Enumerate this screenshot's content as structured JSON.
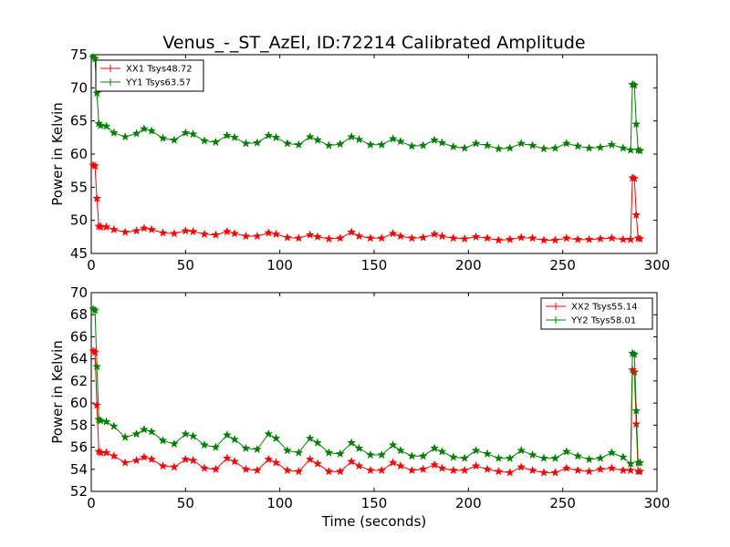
{
  "figure": {
    "title": "Venus_-_ST_AzEl, ID:72214 Calibrated Amplitude",
    "xlabel": "Time (seconds)",
    "ylabel": "Power in Kelvin"
  },
  "colors": {
    "red": "#ff0000",
    "green": "#008000"
  },
  "chart_data": [
    {
      "type": "line",
      "title": "Venus_-_ST_AzEl, ID:72214 Calibrated Amplitude",
      "xlabel": "",
      "ylabel": "Power in Kelvin",
      "xlim": [
        0,
        300
      ],
      "ylim": [
        45,
        75
      ],
      "xticks": [
        0,
        50,
        100,
        150,
        200,
        250,
        300
      ],
      "yticks": [
        45,
        50,
        55,
        60,
        65,
        70,
        75
      ],
      "legend_position": "top-left",
      "grid": false,
      "series": [
        {
          "name": "XX1 Tsys48.72",
          "color": "#ff0000",
          "marker": "star",
          "x": [
            1,
            2,
            3,
            4,
            5,
            8,
            12,
            18,
            24,
            28,
            32,
            38,
            44,
            50,
            54,
            60,
            66,
            72,
            76,
            82,
            88,
            94,
            98,
            104,
            110,
            116,
            120,
            126,
            132,
            138,
            142,
            148,
            154,
            160,
            164,
            170,
            176,
            182,
            186,
            192,
            198,
            204,
            210,
            216,
            222,
            228,
            234,
            240,
            246,
            252,
            258,
            264,
            270,
            276,
            282,
            286,
            287,
            288,
            289,
            290,
            291
          ],
          "y": [
            58.3,
            58.2,
            53.3,
            49.1,
            49.0,
            49.0,
            48.6,
            48.2,
            48.4,
            48.8,
            48.6,
            48.1,
            48.0,
            48.4,
            48.3,
            47.9,
            47.8,
            48.3,
            48.0,
            47.6,
            47.6,
            48.1,
            47.9,
            47.4,
            47.3,
            47.8,
            47.5,
            47.2,
            47.3,
            48.2,
            47.6,
            47.3,
            47.3,
            48.0,
            47.6,
            47.3,
            47.4,
            47.9,
            47.6,
            47.3,
            47.2,
            47.5,
            47.3,
            47.0,
            47.1,
            47.4,
            47.3,
            47.0,
            47.0,
            47.3,
            47.1,
            47.1,
            47.2,
            47.3,
            47.1,
            47.1,
            56.4,
            56.3,
            50.8,
            47.3,
            47.2
          ]
        },
        {
          "name": "YY1 Tsys63.57",
          "color": "#008000",
          "marker": "star",
          "x": [
            1,
            2,
            3,
            4,
            5,
            8,
            12,
            18,
            24,
            28,
            32,
            38,
            44,
            50,
            54,
            60,
            66,
            72,
            76,
            82,
            88,
            94,
            98,
            104,
            110,
            116,
            120,
            126,
            132,
            138,
            142,
            148,
            154,
            160,
            164,
            170,
            176,
            182,
            186,
            192,
            198,
            204,
            210,
            216,
            222,
            228,
            234,
            240,
            246,
            252,
            258,
            264,
            270,
            276,
            282,
            286,
            287,
            288,
            289,
            290,
            291
          ],
          "y": [
            74.6,
            74.4,
            69.2,
            64.6,
            64.3,
            64.2,
            63.2,
            62.6,
            63.1,
            63.8,
            63.5,
            62.4,
            62.1,
            63.2,
            63.0,
            62.0,
            61.8,
            62.8,
            62.5,
            61.6,
            61.7,
            62.8,
            62.5,
            61.6,
            61.4,
            62.6,
            62.1,
            61.3,
            61.5,
            62.6,
            62.2,
            61.4,
            61.4,
            62.3,
            61.9,
            61.2,
            61.3,
            62.1,
            61.7,
            61.1,
            60.9,
            61.6,
            61.3,
            60.8,
            60.9,
            61.6,
            61.3,
            60.8,
            60.9,
            61.6,
            61.2,
            60.9,
            61.0,
            61.4,
            60.9,
            60.6,
            70.5,
            70.4,
            64.5,
            60.6,
            60.5
          ]
        }
      ]
    },
    {
      "type": "line",
      "title": "",
      "xlabel": "Time (seconds)",
      "ylabel": "Power in Kelvin",
      "xlim": [
        0,
        300
      ],
      "ylim": [
        52,
        70
      ],
      "xticks": [
        0,
        50,
        100,
        150,
        200,
        250,
        300
      ],
      "yticks": [
        52,
        54,
        56,
        58,
        60,
        62,
        64,
        66,
        68,
        70
      ],
      "legend_position": "top-right",
      "grid": false,
      "series": [
        {
          "name": "XX2 Tsys55.14",
          "color": "#ff0000",
          "marker": "star",
          "x": [
            1,
            2,
            3,
            4,
            5,
            8,
            12,
            18,
            24,
            28,
            32,
            38,
            44,
            50,
            54,
            60,
            66,
            72,
            76,
            82,
            88,
            94,
            98,
            104,
            110,
            116,
            120,
            126,
            132,
            138,
            142,
            148,
            154,
            160,
            164,
            170,
            176,
            182,
            186,
            192,
            198,
            204,
            210,
            216,
            222,
            228,
            234,
            240,
            246,
            252,
            258,
            264,
            270,
            276,
            282,
            286,
            287,
            288,
            289,
            290,
            291
          ],
          "y": [
            64.7,
            64.6,
            59.8,
            55.6,
            55.5,
            55.5,
            55.2,
            54.6,
            54.8,
            55.1,
            54.9,
            54.3,
            54.2,
            54.9,
            54.8,
            54.1,
            54.0,
            55.0,
            54.7,
            54.0,
            53.9,
            54.9,
            54.6,
            53.9,
            53.8,
            54.9,
            54.5,
            53.8,
            53.8,
            54.7,
            54.3,
            53.9,
            53.9,
            54.6,
            54.3,
            53.9,
            54.0,
            54.4,
            54.1,
            53.9,
            53.9,
            54.3,
            54.0,
            53.8,
            53.7,
            54.2,
            53.9,
            53.7,
            53.7,
            54.1,
            53.9,
            53.8,
            54.0,
            54.1,
            53.9,
            53.9,
            63.0,
            62.8,
            58.1,
            53.8,
            53.8
          ]
        },
        {
          "name": "YY2 Tsys58.01",
          "color": "#008000",
          "marker": "star",
          "x": [
            1,
            2,
            3,
            4,
            5,
            8,
            12,
            18,
            24,
            28,
            32,
            38,
            44,
            50,
            54,
            60,
            66,
            72,
            76,
            82,
            88,
            94,
            98,
            104,
            110,
            116,
            120,
            126,
            132,
            138,
            142,
            148,
            154,
            160,
            164,
            170,
            176,
            182,
            186,
            192,
            198,
            204,
            210,
            216,
            222,
            228,
            234,
            240,
            246,
            252,
            258,
            264,
            270,
            276,
            282,
            286,
            287,
            288,
            289,
            290,
            291
          ],
          "y": [
            68.5,
            68.4,
            63.3,
            58.5,
            58.4,
            58.3,
            57.9,
            56.9,
            57.2,
            57.6,
            57.4,
            56.6,
            56.3,
            57.2,
            57.0,
            56.2,
            56.0,
            57.1,
            56.7,
            55.9,
            55.8,
            57.2,
            56.8,
            55.7,
            55.5,
            56.8,
            56.4,
            55.5,
            55.4,
            56.4,
            55.9,
            55.3,
            55.3,
            56.2,
            55.7,
            55.2,
            55.2,
            55.9,
            55.6,
            55.1,
            55.0,
            55.7,
            55.4,
            55.0,
            55.0,
            55.7,
            55.3,
            55.0,
            55.0,
            55.6,
            55.2,
            54.9,
            55.0,
            55.5,
            55.1,
            54.5,
            64.5,
            64.4,
            59.3,
            54.6,
            54.6
          ]
        }
      ]
    }
  ]
}
